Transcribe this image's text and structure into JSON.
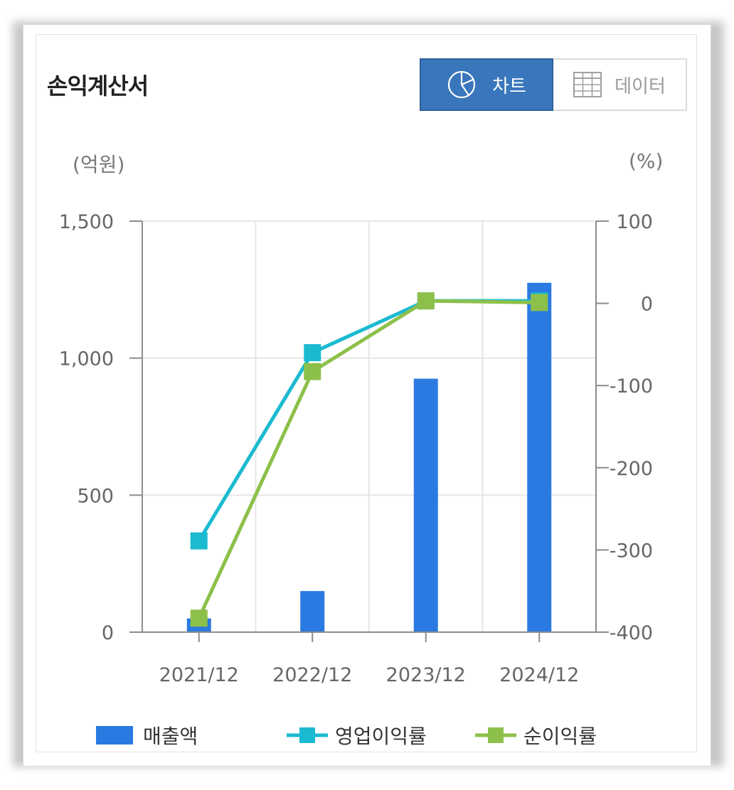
{
  "header": {
    "title": "손익계산서",
    "tabs": [
      {
        "label": "차트",
        "icon": "pie-chart-icon",
        "active": true
      },
      {
        "label": "데이터",
        "icon": "table-grid-icon",
        "active": false
      }
    ]
  },
  "colors": {
    "accent": "#3a76bc",
    "bar": "#2a7ae2",
    "op_margin": "#1bbad0",
    "net_margin": "#8dc04a"
  },
  "chart_data": {
    "type": "bar",
    "categories": [
      "2021/12",
      "2022/12",
      "2023/12",
      "2024/12"
    ],
    "left_unit": "(억원)",
    "right_unit": "(%)",
    "left_axis": {
      "min": 0,
      "max": 1500,
      "ticks": [
        "0",
        "500",
        "1,000",
        "1,500"
      ],
      "tick_values": [
        0,
        500,
        1000,
        1500
      ]
    },
    "right_axis": {
      "min": -400,
      "max": 100,
      "ticks": [
        "-400",
        "-300",
        "-200",
        "-100",
        "0",
        "100"
      ],
      "tick_values": [
        -400,
        -300,
        -200,
        -100,
        0,
        100
      ]
    },
    "series": [
      {
        "name": "매출액",
        "type": "bar",
        "axis": "left",
        "values": [
          50,
          150,
          925,
          1275
        ]
      },
      {
        "name": "영업이익률",
        "type": "line",
        "axis": "right",
        "values": [
          -289,
          -60,
          3,
          3
        ]
      },
      {
        "name": "순이익률",
        "type": "line",
        "axis": "right",
        "values": [
          -383,
          -83,
          3,
          1
        ]
      }
    ],
    "grid": true,
    "legend": "bottom"
  }
}
